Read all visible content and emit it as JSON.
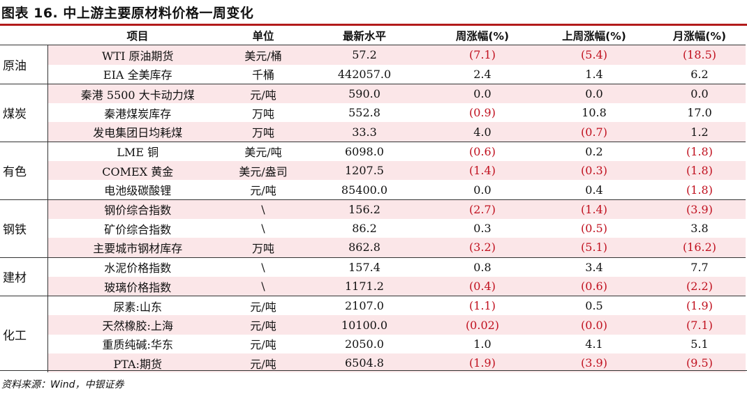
{
  "title": "图表 16. 中上游主要原材料价格一周变化",
  "source": "资料来源：Wind，中银证券",
  "headers": [
    "项目",
    "单位",
    "最新水平",
    "周涨幅(%)",
    "上周涨幅(%)",
    "月涨幅(%)"
  ],
  "groups": [
    {
      "category": "原油",
      "rows": [
        [
          "WTI 原油期货",
          "美元/桶",
          "57.2",
          "(7.1)",
          "(5.4)",
          "(18.5)"
        ],
        [
          "EIA 全美库存",
          "千桶",
          "442057.0",
          "2.4",
          "1.4",
          "6.2"
        ]
      ]
    },
    {
      "category": "煤炭",
      "rows": [
        [
          "秦港 5500 大卡动力煤",
          "元/吨",
          "590.0",
          "0.0",
          "0.0",
          "0.0"
        ],
        [
          "秦港煤炭库存",
          "万吨",
          "552.8",
          "(0.9)",
          "10.8",
          "17.0"
        ],
        [
          "发电集团日均耗煤",
          "万吨",
          "33.3",
          "4.0",
          "(0.7)",
          "1.2"
        ]
      ]
    },
    {
      "category": "有色",
      "rows": [
        [
          "LME 铜",
          "美元/吨",
          "6098.0",
          "(0.6)",
          "0.2",
          "(1.8)"
        ],
        [
          "COMEX 黄金",
          "美元/盎司",
          "1207.5",
          "(1.4)",
          "(0.3)",
          "(1.8)"
        ],
        [
          "电池级碳酸锂",
          "元/吨",
          "85400.0",
          "0.0",
          "0.4",
          "(1.8)"
        ]
      ]
    },
    {
      "category": "钢铁",
      "rows": [
        [
          "钢价综合指数",
          "\\",
          "156.2",
          "(2.7)",
          "(1.4)",
          "(3.9)"
        ],
        [
          "矿价综合指数",
          "\\",
          "86.2",
          "0.3",
          "(0.5)",
          "3.8"
        ],
        [
          "主要城市钢材库存",
          "万吨",
          "862.8",
          "(3.2)",
          "(5.1)",
          "(16.2)"
        ]
      ]
    },
    {
      "category": "建材",
      "rows": [
        [
          "水泥价格指数",
          "\\",
          "157.4",
          "0.8",
          "3.4",
          "7.7"
        ],
        [
          "玻璃价格指数",
          "\\",
          "1171.2",
          "(0.4)",
          "(0.6)",
          "(2.2)"
        ]
      ]
    },
    {
      "category": "化工",
      "rows": [
        [
          "尿素:山东",
          "元/吨",
          "2107.0",
          "(1.1)",
          "0.5",
          "(1.9)"
        ],
        [
          "天然橡胶:上海",
          "元/吨",
          "10100.0",
          "(0.02)",
          "(0.0)",
          "(7.1)"
        ],
        [
          "重质纯碱:华东",
          "元/吨",
          "2050.0",
          "1.0",
          "4.1",
          "5.1"
        ],
        [
          "PTA:期货",
          "元/吨",
          "6504.8",
          "(1.9)",
          "(3.9)",
          "(9.5)"
        ]
      ]
    }
  ],
  "colors": {
    "accent": "#b31b1b",
    "negative": "#c0101e",
    "shade": "#fbe6e8"
  }
}
